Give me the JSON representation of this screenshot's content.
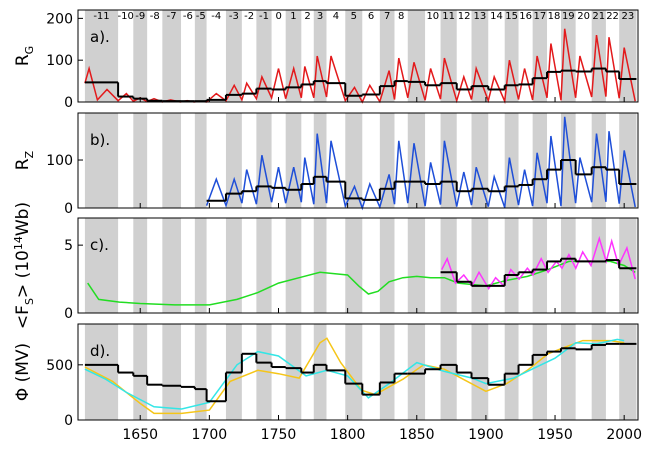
{
  "chart_data": [
    {
      "type": "line",
      "panel_label": "a).",
      "ylabel": [
        {
          "text": "R"
        },
        {
          "text": "G",
          "sub": true
        }
      ],
      "xlim": [
        1605,
        2010
      ],
      "ylim": [
        0,
        220
      ],
      "yticks": [
        0,
        100,
        200
      ],
      "shading": "alternate",
      "cycle_boundaries": [
        1610,
        1634,
        1645,
        1655,
        1666,
        1679.5,
        1689.5,
        1698,
        1712,
        1723.5,
        1734,
        1745,
        1755.2,
        1766.5,
        1775.5,
        1784.7,
        1798.3,
        1810.6,
        1823.3,
        1833.9,
        1843.5,
        1856,
        1867.2,
        1878.9,
        1889.6,
        1901.7,
        1913.6,
        1923.6,
        1933.8,
        1944.2,
        1954.3,
        1964.9,
        1976.5,
        1986.8,
        1996.4,
        2008.9
      ],
      "cycle_labels": [
        "-11",
        "-10",
        "-9",
        "-8",
        "-7",
        "-6",
        "-5",
        "-4",
        "-3",
        "-2",
        "-1",
        "0",
        "1",
        "2",
        "3",
        "4",
        "5",
        "6",
        "7",
        "8",
        null,
        "10",
        "11",
        "12",
        "13",
        "14",
        "15",
        "16",
        "17",
        "18",
        "19",
        "20",
        "21",
        "22",
        "23"
      ],
      "series": [
        {
          "color": "#e31a1c",
          "x": [
            1610,
            1613,
            1619,
            1626,
            1634,
            1640,
            1645,
            1650,
            1655,
            1660,
            1666,
            1672,
            1679,
            1684,
            1689,
            1693,
            1698,
            1705,
            1712,
            1718,
            1723.5,
            1727,
            1734,
            1738,
            1745,
            1750,
            1755.2,
            1761,
            1766.5,
            1769,
            1775.5,
            1778,
            1784.7,
            1788,
            1798.3,
            1805,
            1810.6,
            1816,
            1823.3,
            1830,
            1833.9,
            1837,
            1843.5,
            1848,
            1856,
            1860,
            1867.2,
            1870,
            1878.9,
            1884,
            1889.6,
            1893,
            1901.7,
            1906,
            1913.6,
            1917,
            1923.6,
            1928,
            1933.8,
            1937,
            1944.2,
            1947,
            1954.3,
            1957,
            1964.9,
            1968,
            1976.5,
            1980,
            1986.8,
            1989,
            1996.4,
            2000,
            2008
          ],
          "values": [
            45,
            80,
            5,
            30,
            3,
            20,
            2,
            10,
            1,
            8,
            0,
            5,
            0,
            3,
            0,
            2,
            0,
            20,
            3,
            40,
            5,
            45,
            8,
            60,
            10,
            80,
            8,
            80,
            10,
            85,
            10,
            110,
            12,
            110,
            3,
            35,
            0,
            40,
            1,
            75,
            6,
            105,
            10,
            95,
            4,
            80,
            7,
            105,
            3,
            60,
            6,
            80,
            3,
            60,
            2,
            100,
            6,
            80,
            5,
            110,
            10,
            140,
            4,
            175,
            10,
            110,
            12,
            160,
            13,
            155,
            9,
            130,
            2
          ]
        },
        {
          "color": "#000000",
          "step": true,
          "values": [
            47,
            13,
            8,
            3,
            2,
            2,
            2,
            5,
            17,
            20,
            32,
            30,
            35,
            42,
            50,
            45,
            15,
            18,
            38,
            50,
            48,
            40,
            45,
            30,
            38,
            30,
            40,
            42,
            57,
            72,
            75,
            73,
            80,
            73,
            55
          ]
        }
      ]
    },
    {
      "type": "line",
      "panel_label": "b).",
      "ylabel": [
        {
          "text": "R"
        },
        {
          "text": "Z",
          "sub": true
        }
      ],
      "xlim": [
        1605,
        2010
      ],
      "ylim": [
        0,
        198
      ],
      "yticks": [
        0,
        100
      ],
      "series": [
        {
          "color": "#1f4fd8",
          "x": [
            1698,
            1705,
            1712,
            1718,
            1723.5,
            1727,
            1734,
            1738,
            1745,
            1750,
            1755.2,
            1761,
            1766.5,
            1769,
            1775.5,
            1778,
            1784.7,
            1788,
            1798.3,
            1805,
            1810.6,
            1816,
            1823.3,
            1830,
            1833.9,
            1837,
            1843.5,
            1848,
            1856,
            1860,
            1867.2,
            1870,
            1878.9,
            1884,
            1889.6,
            1893,
            1901.7,
            1906,
            1913.6,
            1917,
            1923.6,
            1928,
            1933.8,
            1937,
            1944.2,
            1947,
            1954.3,
            1957,
            1964.9,
            1968,
            1976.5,
            1980,
            1986.8,
            1989,
            1996.4,
            2000,
            2008
          ],
          "values": [
            5,
            60,
            5,
            60,
            10,
            80,
            8,
            110,
            12,
            85,
            10,
            85,
            12,
            105,
            8,
            155,
            10,
            140,
            4,
            45,
            0,
            50,
            2,
            70,
            8,
            140,
            10,
            135,
            4,
            95,
            7,
            140,
            3,
            75,
            6,
            85,
            3,
            65,
            1,
            105,
            6,
            80,
            4,
            115,
            10,
            150,
            4,
            190,
            10,
            105,
            12,
            155,
            13,
            160,
            9,
            120,
            2
          ]
        },
        {
          "color": "#000000",
          "step": true,
          "values": [
            null,
            null,
            null,
            null,
            null,
            null,
            null,
            15,
            30,
            35,
            45,
            42,
            38,
            50,
            65,
            55,
            20,
            17,
            40,
            55,
            55,
            50,
            55,
            35,
            40,
            35,
            45,
            48,
            60,
            80,
            100,
            70,
            85,
            80,
            50
          ]
        }
      ]
    },
    {
      "type": "line",
      "panel_label": "c).",
      "ylabel": [
        {
          "text": "<F"
        },
        {
          "text": "S",
          "sub": true
        },
        {
          "text": "> (10"
        },
        {
          "text": "14",
          "sup": true
        },
        {
          "text": "Wb)"
        }
      ],
      "xlim": [
        1605,
        2010
      ],
      "ylim": [
        0,
        7
      ],
      "yticks": [
        0,
        5
      ],
      "series": [
        {
          "color": "#22dd22",
          "x": [
            1612,
            1620,
            1635,
            1650,
            1675,
            1700,
            1720,
            1735,
            1750,
            1765,
            1780,
            1790,
            1800,
            1808,
            1815,
            1822,
            1830,
            1840,
            1850,
            1860,
            1870,
            1880,
            1890,
            1900,
            1915,
            1930,
            1945,
            1960,
            1975,
            1990,
            2000,
            2008
          ],
          "values": [
            2.2,
            1.0,
            0.8,
            0.7,
            0.6,
            0.6,
            1.0,
            1.5,
            2.2,
            2.6,
            3.0,
            2.9,
            2.8,
            2.0,
            1.4,
            1.6,
            2.3,
            2.6,
            2.7,
            2.6,
            2.6,
            2.2,
            2.1,
            2.0,
            2.4,
            2.7,
            3.2,
            3.8,
            3.8,
            3.8,
            3.5,
            3.0
          ]
        },
        {
          "color": "#ff33ff",
          "x": [
            1868,
            1872,
            1878,
            1884,
            1890,
            1895,
            1902,
            1907,
            1913,
            1918,
            1924,
            1930,
            1934,
            1940,
            1945,
            1951,
            1955,
            1960,
            1965,
            1970,
            1976,
            1982,
            1987,
            1991,
            1996,
            2002,
            2008
          ],
          "values": [
            3.2,
            4.0,
            2.2,
            2.8,
            2.0,
            3.0,
            1.8,
            2.6,
            2.0,
            3.2,
            2.5,
            3.3,
            2.8,
            4.0,
            3.0,
            3.8,
            3.3,
            4.3,
            3.3,
            4.5,
            3.5,
            5.5,
            3.8,
            5.3,
            3.5,
            4.8,
            2.5
          ]
        },
        {
          "color": "#000000",
          "step": true,
          "values": [
            null,
            null,
            null,
            null,
            null,
            null,
            null,
            null,
            null,
            null,
            null,
            null,
            null,
            null,
            null,
            null,
            null,
            null,
            null,
            null,
            null,
            null,
            3.0,
            2.3,
            2.0,
            2.0,
            2.8,
            3.0,
            3.2,
            3.8,
            4.0,
            3.8,
            3.8,
            3.9,
            3.3
          ]
        }
      ]
    },
    {
      "type": "line",
      "panel_label": "d).",
      "ylabel": [
        {
          "text": "Φ (MV)"
        }
      ],
      "xlim": [
        1605,
        2010
      ],
      "ylim": [
        0,
        870
      ],
      "yticks": [
        0,
        500
      ],
      "xticks": [
        1650,
        1700,
        1750,
        1800,
        1850,
        1900,
        1950,
        2000
      ],
      "series": [
        {
          "color": "#f5c518",
          "x": [
            1610,
            1630,
            1650,
            1660,
            1680,
            1700,
            1715,
            1735,
            1750,
            1765,
            1780,
            1785,
            1795,
            1810,
            1820,
            1840,
            1855,
            1870,
            1885,
            1900,
            1915,
            1930,
            1945,
            1955,
            1970,
            1990,
            2000
          ],
          "values": [
            480,
            350,
            150,
            60,
            60,
            90,
            350,
            450,
            420,
            380,
            700,
            740,
            520,
            270,
            230,
            370,
            500,
            460,
            360,
            260,
            330,
            450,
            600,
            650,
            720,
            720,
            700
          ]
        },
        {
          "color": "#33e6e6",
          "x": [
            1610,
            1625,
            1640,
            1660,
            1680,
            1700,
            1720,
            1735,
            1750,
            1770,
            1785,
            1800,
            1815,
            1830,
            1850,
            1870,
            1890,
            1900,
            1920,
            1935,
            1950,
            1965,
            1980,
            1995,
            2000
          ],
          "values": [
            460,
            370,
            250,
            120,
            100,
            160,
            500,
            620,
            580,
            400,
            450,
            400,
            200,
            330,
            520,
            440,
            380,
            330,
            380,
            470,
            560,
            700,
            690,
            730,
            720
          ]
        },
        {
          "color": "#000000",
          "step": true,
          "values": [
            500,
            430,
            400,
            320,
            310,
            300,
            280,
            170,
            430,
            600,
            520,
            480,
            470,
            430,
            500,
            450,
            330,
            230,
            340,
            420,
            420,
            460,
            500,
            430,
            380,
            320,
            420,
            500,
            590,
            620,
            650,
            640,
            680,
            690,
            690
          ]
        }
      ]
    }
  ]
}
